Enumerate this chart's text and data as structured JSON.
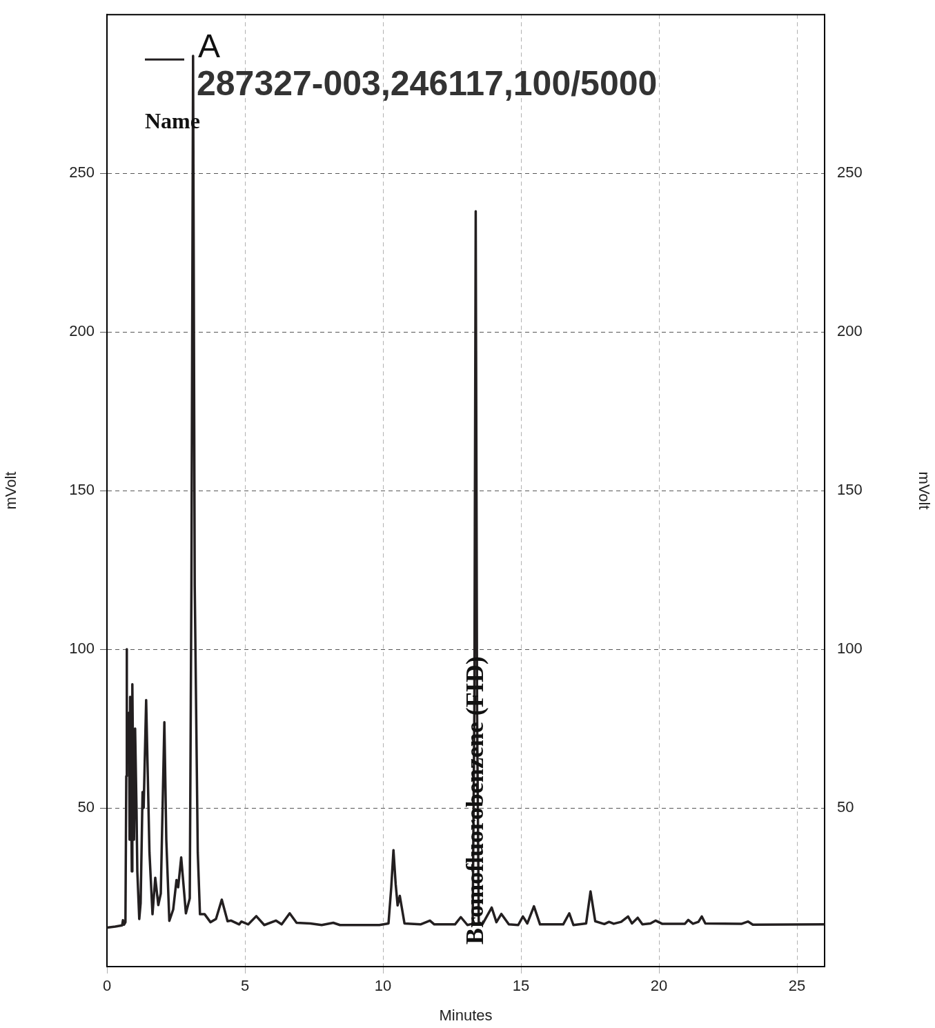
{
  "chart_data": {
    "type": "line",
    "title": "287327-003,246117,100/5000",
    "legend_title": "Name",
    "xlabel": "Minutes",
    "ylabel": "mVolt",
    "y2label": "mVolt",
    "xlim": [
      0,
      26
    ],
    "xticks": [
      0,
      5,
      10,
      15,
      20,
      25
    ],
    "ylim": [
      0,
      300
    ],
    "yticks": [
      50,
      100,
      150,
      200,
      250
    ],
    "y2lim": [
      0,
      300
    ],
    "y2ticks": [
      50,
      100,
      150,
      200,
      250
    ],
    "grid": true,
    "legend": "top left",
    "marker": "none",
    "line_style": "solid",
    "annotations": [
      "Bromofluorobenzene (FID)"
    ],
    "series": [
      {
        "name": "A",
        "color": "#231f20",
        "x": [
          0,
          0.3,
          0.55,
          0.58,
          0.62,
          0.67,
          0.7,
          0.72,
          0.75,
          0.78,
          0.8,
          0.82,
          0.84,
          0.87,
          0.9,
          0.92,
          0.95,
          0.98,
          1.02,
          1.07,
          1.1,
          1.17,
          1.22,
          1.29,
          1.33,
          1.42,
          1.48,
          1.54,
          1.65,
          1.75,
          1.86,
          1.95,
          2.08,
          2.15,
          2.26,
          2.4,
          2.52,
          2.58,
          2.69,
          2.86,
          3.0,
          3.06,
          3.12,
          3.18,
          3.29,
          3.37,
          3.54,
          3.75,
          3.95,
          4.16,
          4.37,
          4.5,
          4.79,
          4.87,
          5.12,
          5.41,
          5.7,
          6.12,
          6.33,
          6.62,
          6.87,
          7.37,
          7.78,
          8.2,
          8.44,
          9.87,
          10.2,
          10.3,
          10.38,
          10.46,
          10.53,
          10.61,
          10.78,
          11.36,
          11.7,
          11.86,
          12.61,
          12.82,
          13.06,
          13.25,
          13.31,
          13.36,
          13.41,
          13.47,
          13.6,
          13.94,
          14.11,
          14.29,
          14.56,
          14.9,
          15.07,
          15.23,
          15.47,
          15.69,
          16.53,
          16.75,
          16.9,
          17.36,
          17.52,
          17.69,
          18.02,
          18.19,
          18.36,
          18.63,
          18.88,
          19.02,
          19.23,
          19.4,
          19.69,
          19.88,
          20.11,
          20.94,
          21.06,
          21.23,
          21.43,
          21.55,
          21.68,
          23.0,
          23.23,
          23.4,
          25.97
        ],
        "values": [
          12.3,
          12.6,
          13,
          14.6,
          13.2,
          14,
          60,
          100,
          null,
          null,
          80,
          40,
          85,
          60,
          30,
          89,
          60,
          40,
          75,
          50,
          30,
          15,
          20,
          55,
          50,
          84,
          60,
          36,
          16.5,
          28,
          19.4,
          23,
          77,
          40,
          14.4,
          18,
          27.3,
          25,
          34.4,
          16.8,
          21.5,
          120,
          287,
          120,
          36,
          16.5,
          16.5,
          14,
          15,
          21.1,
          14.3,
          14.5,
          13.3,
          14.2,
          13.3,
          15.9,
          13.1,
          14.5,
          13.3,
          16.8,
          13.8,
          13.6,
          13.1,
          13.8,
          13.1,
          13.1,
          13.6,
          25,
          36.7,
          26,
          19.3,
          22.3,
          13.6,
          13.3,
          14.5,
          13.3,
          13.3,
          15.6,
          13.1,
          13.5,
          80,
          238,
          80,
          14,
          13.3,
          18.6,
          14,
          16.6,
          13.3,
          13.1,
          15.8,
          13.6,
          19,
          13.3,
          13.3,
          16.8,
          13.1,
          13.6,
          23.7,
          14.3,
          13.4,
          14.1,
          13.5,
          14.1,
          15.8,
          13.6,
          15.4,
          13.3,
          13.6,
          14.5,
          13.5,
          13.5,
          14.7,
          13.5,
          14.1,
          15.8,
          13.6,
          13.5,
          14.2,
          13.2,
          13.3
        ]
      }
    ]
  }
}
